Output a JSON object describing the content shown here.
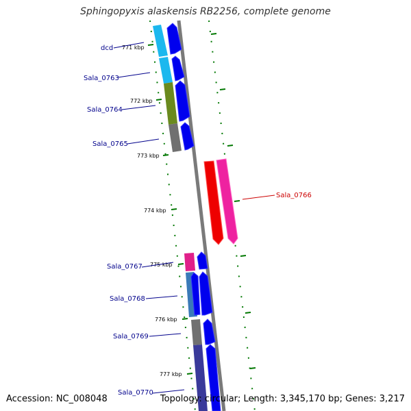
{
  "title": "Sphingopyxis alaskensis RB2256, complete genome",
  "footer": {
    "accession": "Accession: NC_008048",
    "summary": "Topology: circular; Length: 3,345,170 bp; Genes: 3,217"
  },
  "colors": {
    "backbone": "#808080",
    "cds": "#0000ee",
    "ruler": "#007700",
    "label_default": "#00008b",
    "label_highlight": "#cc0000"
  },
  "ruler": [
    "771 kbp",
    "772 kbp",
    "773 kbp",
    "774 kbp",
    "775 kbp",
    "776 kbp",
    "777 kbp"
  ],
  "genes": [
    {
      "label": "dcd",
      "color": "#00008b"
    },
    {
      "label": "Sala_0763",
      "color": "#00008b"
    },
    {
      "label": "Sala_0764",
      "color": "#00008b"
    },
    {
      "label": "Sala_0765",
      "color": "#00008b"
    },
    {
      "label": "Sala_0766",
      "color": "#cc0000"
    },
    {
      "label": "Sala_0767",
      "color": "#00008b"
    },
    {
      "label": "Sala_0768",
      "color": "#00008b"
    },
    {
      "label": "Sala_0769",
      "color": "#00008b"
    },
    {
      "label": "Sala_0770",
      "color": "#00008b"
    }
  ]
}
